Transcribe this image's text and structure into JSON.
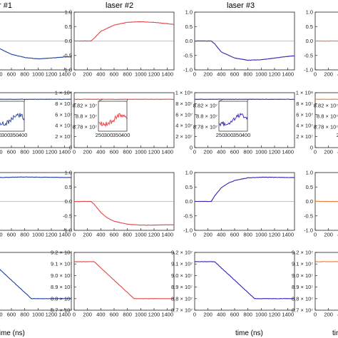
{
  "figure": {
    "column_titles": [
      "r #1",
      "laser #2",
      "laser #3",
      ""
    ],
    "xlabel": "time (ns)",
    "colors": [
      "#1f3fa0",
      "#e0464a",
      "#3a1fb0",
      "#f07a3a"
    ]
  },
  "chart_data": [
    {
      "type": "line",
      "row": 0,
      "title": "",
      "xlabel": "",
      "ylabel": "",
      "xlim": [
        0,
        1500
      ],
      "ylim": [
        -1.05,
        1.05
      ],
      "xticks": [
        "0",
        "200",
        "400",
        "600",
        "800",
        "1000",
        "1200",
        "1400"
      ],
      "yticks": [
        "1.0",
        "0.5",
        "0.0",
        "-0.5",
        "-1.0"
      ],
      "series": [
        {
          "laser": 1,
          "x": [
            0,
            250,
            300,
            400,
            600,
            800,
            1000,
            1200,
            1400,
            1500
          ],
          "y": [
            0,
            0,
            -0.05,
            -0.25,
            -0.48,
            -0.6,
            -0.65,
            -0.62,
            -0.58,
            -0.57
          ]
        },
        {
          "laser": 2,
          "x": [
            0,
            250,
            300,
            400,
            600,
            800,
            1000,
            1200,
            1400,
            1500
          ],
          "y": [
            0,
            0,
            0.1,
            0.35,
            0.58,
            0.68,
            0.7,
            0.68,
            0.63,
            0.6
          ]
        },
        {
          "laser": 3,
          "x": [
            0,
            250,
            300,
            400,
            600,
            800,
            1000,
            1200,
            1400,
            1500
          ],
          "y": [
            0,
            0,
            -0.1,
            -0.4,
            -0.62,
            -0.7,
            -0.68,
            -0.62,
            -0.56,
            -0.54
          ]
        },
        {
          "laser": 4,
          "x": [
            0,
            250,
            300,
            400,
            600,
            800,
            1000,
            1200,
            1400,
            1500
          ],
          "y": [
            0,
            0,
            0,
            0,
            0,
            0,
            0,
            0,
            0,
            0
          ]
        }
      ]
    },
    {
      "type": "line",
      "row": 1,
      "title": "",
      "xlabel": "",
      "ylabel": "",
      "xlim": [
        0,
        1500
      ],
      "ylim": [
        0,
        100000000
      ],
      "xticks": [
        "0",
        "200",
        "400",
        "600",
        "800",
        "1000",
        "1200",
        "1400"
      ],
      "yticks": [
        "1 × 10⁸",
        "8 × 10⁷",
        "6 × 10⁷",
        "4 × 10⁷",
        "2 × 10⁷",
        "0"
      ],
      "inset_xticks": [
        "250",
        "300",
        "350",
        "400"
      ],
      "inset_yticks": [
        "8.82 × 10⁷",
        "8.8 × 10⁷",
        "8.78 × 10⁷"
      ],
      "series": [
        {
          "laser": 1,
          "x": [
            0,
            1500
          ],
          "y": [
            88000000,
            88000000
          ]
        },
        {
          "laser": 2,
          "x": [
            0,
            1500
          ],
          "y": [
            88000000,
            88000000
          ]
        },
        {
          "laser": 3,
          "x": [
            0,
            1500
          ],
          "y": [
            88000000,
            88000000
          ]
        },
        {
          "laser": 4,
          "x": [
            0,
            1500
          ],
          "y": [
            88000000,
            88000000
          ]
        }
      ]
    },
    {
      "type": "line",
      "row": 2,
      "title": "",
      "xlabel": "",
      "ylabel": "",
      "xlim": [
        0,
        1500
      ],
      "ylim": [
        -1.05,
        1.05
      ],
      "xticks": [
        "0",
        "200",
        "400",
        "600",
        "800",
        "1000",
        "1200",
        "1400"
      ],
      "yticks": [
        "1.0",
        "0.5",
        "0.0",
        "-0.5",
        "-1.0"
      ],
      "series": [
        {
          "laser": 1,
          "x": [
            0,
            250,
            300,
            400,
            600,
            800,
            1000,
            1200,
            1400,
            1500
          ],
          "y": [
            0.85,
            0.85,
            0.86,
            0.87,
            0.88,
            0.89,
            0.88,
            0.88,
            0.87,
            0.87
          ]
        },
        {
          "laser": 2,
          "x": [
            0,
            250,
            300,
            400,
            500,
            600,
            800,
            1000,
            1200,
            1400,
            1500
          ],
          "y": [
            0,
            0,
            -0.1,
            -0.4,
            -0.6,
            -0.72,
            -0.83,
            -0.86,
            -0.86,
            -0.85,
            -0.85
          ]
        },
        {
          "laser": 3,
          "x": [
            0,
            250,
            300,
            400,
            500,
            600,
            800,
            1000,
            1200,
            1400,
            1500
          ],
          "y": [
            0,
            0,
            0.2,
            0.5,
            0.66,
            0.76,
            0.86,
            0.88,
            0.88,
            0.87,
            0.87
          ]
        },
        {
          "laser": 4,
          "x": [
            0,
            250,
            300,
            400,
            600,
            800,
            1000,
            1200,
            1400,
            1500
          ],
          "y": [
            0,
            0,
            0,
            0,
            0,
            0,
            0,
            0,
            0,
            0
          ]
        }
      ]
    },
    {
      "type": "line",
      "row": 3,
      "title": "",
      "xlabel": "time (ns)",
      "ylabel": "",
      "xlim": [
        0,
        1500
      ],
      "ylim": [
        87000000,
        92000000
      ],
      "xticks": [
        "0",
        "200",
        "400",
        "600",
        "800",
        "1000",
        "1200",
        "1400"
      ],
      "yticks": [
        "9.2 × 10⁷",
        "9.1 × 10⁷",
        "9.0 × 10⁷",
        "8.9 × 10⁷",
        "8.8 × 10⁷",
        "8.7 × 10⁷"
      ],
      "series": [
        {
          "laser": 1,
          "x": [
            0,
            300,
            900,
            1500
          ],
          "y": [
            91200000,
            91200000,
            88000000,
            88000000
          ]
        },
        {
          "laser": 2,
          "x": [
            0,
            300,
            900,
            1500
          ],
          "y": [
            91200000,
            91200000,
            88000000,
            88000000
          ]
        },
        {
          "laser": 3,
          "x": [
            0,
            300,
            900,
            1500
          ],
          "y": [
            91200000,
            91200000,
            88000000,
            88000000
          ]
        },
        {
          "laser": 4,
          "x": [
            0,
            300,
            900,
            1500
          ],
          "y": [
            91200000,
            91200000,
            91200000,
            91200000
          ]
        }
      ]
    }
  ]
}
